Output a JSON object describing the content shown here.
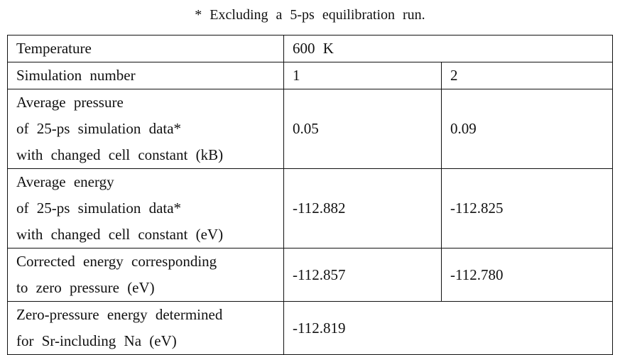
{
  "footnote": "* Excluding a 5-ps equilibration run.",
  "table": {
    "rows": [
      {
        "label": "Temperature",
        "value": "600  K"
      },
      {
        "label": "Simulation  number",
        "values": [
          "1",
          "2"
        ]
      },
      {
        "label": "Average  pressure\nof  25-ps  simulation  data*\nwith  changed  cell  constant  (kB)",
        "values": [
          "0.05",
          "0.09"
        ]
      },
      {
        "label": "Average  energy\nof  25-ps  simulation  data*\nwith  changed  cell  constant  (eV)",
        "values": [
          "-112.882",
          "-112.825"
        ]
      },
      {
        "label": "Corrected  energy  corresponding\nto  zero  pressure  (eV)",
        "values": [
          "-112.857",
          "-112.780"
        ]
      },
      {
        "label": "Zero-pressure  energy  determined\nfor  Sr-including  Na  (eV)",
        "value": "-112.819"
      }
    ]
  }
}
